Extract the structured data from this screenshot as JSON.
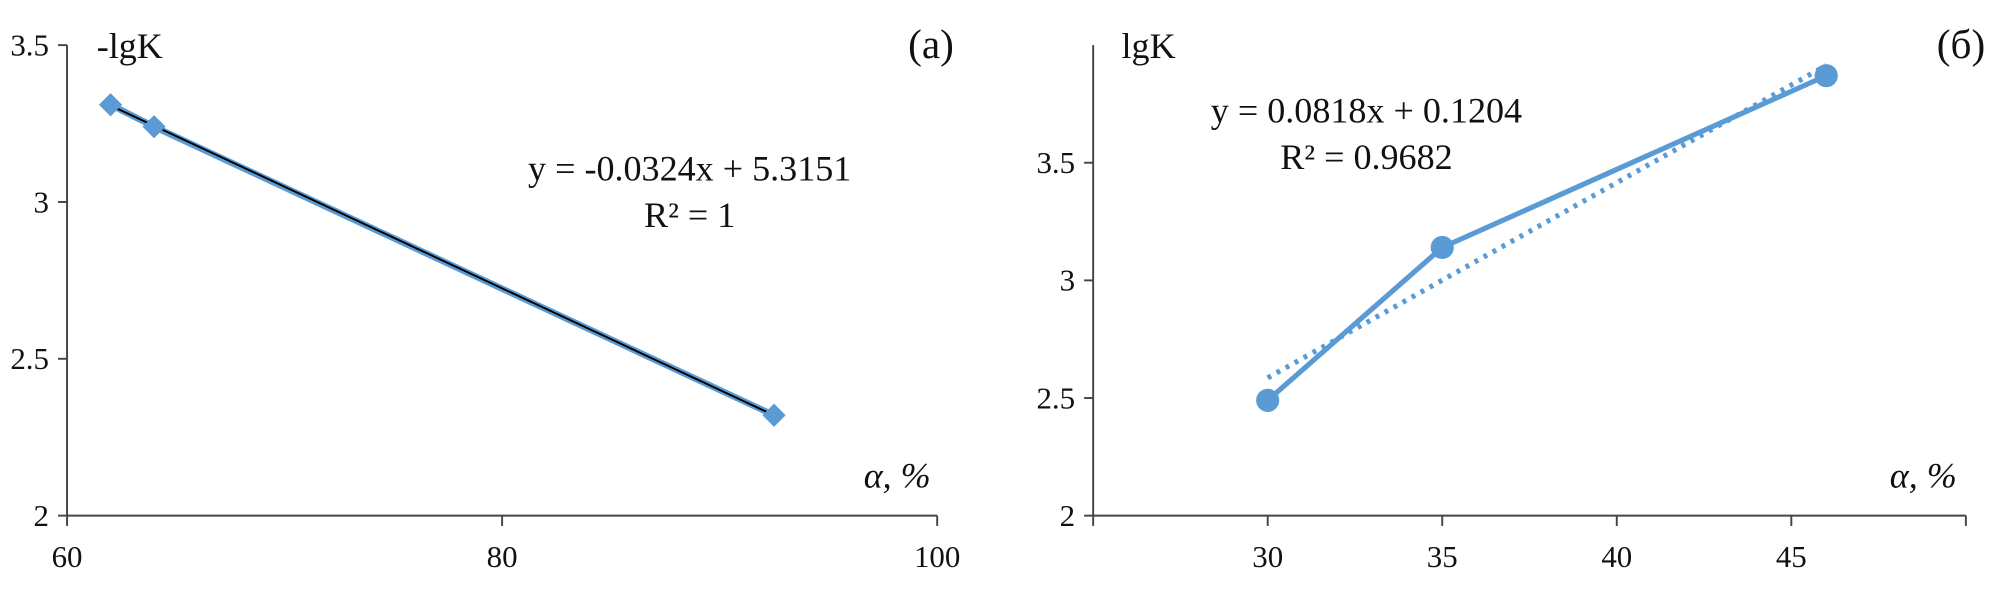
{
  "chart_data": [
    {
      "type": "scatter",
      "marker": "diamond",
      "connect": true,
      "trendline": "solid",
      "panel_label": "(а)",
      "y_label": "-lgK",
      "x_label": "α, %",
      "annotations": [
        "y = -0.0324x + 5.3151",
        "R² = 1"
      ],
      "color": "#5b9bd5",
      "trend_color": "#000000",
      "x": [
        62,
        64,
        92.5
      ],
      "values": [
        3.31,
        3.24,
        2.32
      ],
      "xlim": [
        60,
        100
      ],
      "xticks": [
        60,
        80,
        100
      ],
      "ylim": [
        2,
        3.5
      ],
      "yticks": [
        2,
        2.5,
        3,
        3.5
      ]
    },
    {
      "type": "scatter",
      "marker": "circle",
      "connect": true,
      "trendline": "dotted",
      "panel_label": "(б)",
      "y_label": "lgK",
      "x_label": "α, %",
      "annotations": [
        "y = 0.0818x + 0.1204",
        "R² = 0.9682"
      ],
      "color": "#5b9bd5",
      "trend_color": "#5b9bd5",
      "x": [
        30,
        35,
        46
      ],
      "values": [
        2.49,
        3.14,
        3.87
      ],
      "xlim": [
        25,
        50
      ],
      "xticks": [
        30,
        35,
        40,
        45
      ],
      "ylim": [
        2,
        4
      ],
      "yticks": [
        2,
        2.5,
        3,
        3.5
      ]
    }
  ]
}
